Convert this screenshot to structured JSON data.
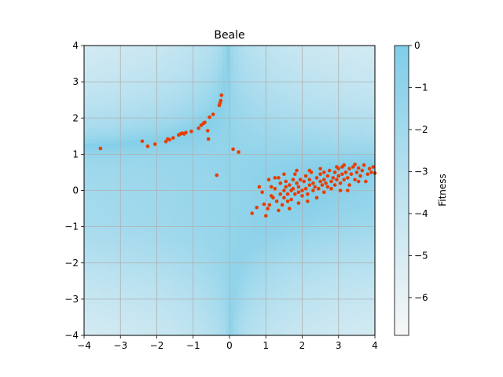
{
  "chart_data": {
    "type": "scatter",
    "title": "Beale",
    "xlabel": "",
    "ylabel": "",
    "xlim": [
      -4,
      4
    ],
    "ylim": [
      -4,
      4
    ],
    "x_ticks": [
      "−4",
      "−3",
      "−2",
      "−1",
      "0",
      "1",
      "2",
      "3",
      "4"
    ],
    "y_ticks": [
      "−4",
      "−3",
      "−2",
      "−1",
      "0",
      "1",
      "2",
      "3",
      "4"
    ],
    "grid": true,
    "background": "heatmap",
    "heatmap_function": "Beale",
    "point_color": "#e63e05",
    "colorbar": {
      "label": "Fitness",
      "ticks": [
        "0",
        "−1",
        "−2",
        "−3",
        "−4",
        "−5",
        "−6"
      ],
      "range": [
        -6.9,
        0
      ],
      "color_high": "#7fcde8",
      "color_low": "#f7f7f7"
    },
    "series": [
      {
        "points": [
          [
            -3.55,
            1.16
          ],
          [
            -2.4,
            1.36
          ],
          [
            -2.25,
            1.22
          ],
          [
            -2.05,
            1.28
          ],
          [
            -1.75,
            1.35
          ],
          [
            -1.7,
            1.42
          ],
          [
            -1.65,
            1.4
          ],
          [
            -1.55,
            1.45
          ],
          [
            -1.4,
            1.53
          ],
          [
            -1.35,
            1.56
          ],
          [
            -1.3,
            1.58
          ],
          [
            -1.25,
            1.56
          ],
          [
            -1.2,
            1.6
          ],
          [
            -1.05,
            1.63
          ],
          [
            -0.85,
            1.72
          ],
          [
            -0.78,
            1.8
          ],
          [
            -0.72,
            1.85
          ],
          [
            -0.68,
            1.88
          ],
          [
            -0.6,
            1.65
          ],
          [
            -0.55,
            2.02
          ],
          [
            -0.45,
            2.1
          ],
          [
            -0.28,
            2.35
          ],
          [
            -0.26,
            2.42
          ],
          [
            -0.24,
            2.48
          ],
          [
            -0.22,
            2.63
          ],
          [
            -0.58,
            1.42
          ],
          [
            0.1,
            1.14
          ],
          [
            0.25,
            1.06
          ],
          [
            -0.35,
            0.42
          ],
          [
            0.62,
            -0.63
          ],
          [
            0.75,
            -0.47
          ],
          [
            0.95,
            -0.38
          ],
          [
            1.0,
            -0.7
          ],
          [
            1.05,
            -0.5
          ],
          [
            1.08,
            0.3
          ],
          [
            1.1,
            -0.4
          ],
          [
            1.15,
            0.1
          ],
          [
            1.2,
            -0.2
          ],
          [
            1.25,
            0.05
          ],
          [
            0.82,
            0.1
          ],
          [
            0.9,
            -0.05
          ],
          [
            1.3,
            -0.3
          ],
          [
            1.35,
            0.35
          ],
          [
            1.4,
            -0.1
          ],
          [
            1.4,
            0.2
          ],
          [
            1.45,
            -0.4
          ],
          [
            1.5,
            0.0
          ],
          [
            1.5,
            -0.2
          ],
          [
            1.55,
            0.25
          ],
          [
            1.55,
            0.1
          ],
          [
            1.6,
            -0.1
          ],
          [
            1.6,
            -0.3
          ],
          [
            1.65,
            0.15
          ],
          [
            1.7,
            0.0
          ],
          [
            1.7,
            -0.25
          ],
          [
            1.75,
            0.3
          ],
          [
            1.75,
            0.05
          ],
          [
            1.8,
            -0.1
          ],
          [
            1.8,
            0.45
          ],
          [
            1.85,
            0.2
          ],
          [
            1.9,
            -0.05
          ],
          [
            1.9,
            0.1
          ],
          [
            1.95,
            0.3
          ],
          [
            2.0,
            0.0
          ],
          [
            2.0,
            -0.15
          ],
          [
            2.05,
            0.25
          ],
          [
            2.1,
            0.4
          ],
          [
            2.1,
            0.05
          ],
          [
            2.15,
            -0.1
          ],
          [
            2.2,
            0.15
          ],
          [
            2.2,
            0.3
          ],
          [
            2.25,
            0.5
          ],
          [
            2.3,
            0.0
          ],
          [
            2.3,
            0.2
          ],
          [
            2.35,
            0.1
          ],
          [
            2.4,
            0.35
          ],
          [
            2.45,
            0.05
          ],
          [
            2.5,
            0.25
          ],
          [
            2.5,
            0.45
          ],
          [
            2.55,
            0.15
          ],
          [
            2.6,
            0.3
          ],
          [
            2.6,
            0.5
          ],
          [
            2.65,
            0.2
          ],
          [
            2.7,
            0.1
          ],
          [
            2.7,
            0.4
          ],
          [
            2.75,
            0.55
          ],
          [
            2.8,
            0.25
          ],
          [
            2.8,
            0.05
          ],
          [
            2.85,
            0.35
          ],
          [
            2.9,
            0.5
          ],
          [
            2.9,
            0.15
          ],
          [
            2.95,
            0.3
          ],
          [
            3.0,
            0.6
          ],
          [
            3.0,
            0.4
          ],
          [
            3.05,
            0.2
          ],
          [
            3.1,
            0.45
          ],
          [
            3.1,
            0.65
          ],
          [
            3.15,
            0.3
          ],
          [
            3.2,
            0.5
          ],
          [
            3.25,
            0.35
          ],
          [
            3.3,
            0.6
          ],
          [
            3.3,
            0.15
          ],
          [
            3.35,
            0.45
          ],
          [
            3.4,
            0.65
          ],
          [
            3.45,
            0.3
          ],
          [
            3.5,
            0.5
          ],
          [
            3.55,
            0.62
          ],
          [
            3.6,
            0.4
          ],
          [
            3.65,
            0.55
          ],
          [
            3.7,
            0.7
          ],
          [
            3.75,
            0.25
          ],
          [
            3.8,
            0.45
          ],
          [
            3.85,
            0.6
          ],
          [
            3.9,
            0.5
          ],
          [
            3.95,
            0.65
          ],
          [
            4.0,
            0.48
          ],
          [
            3.05,
            0.0
          ],
          [
            3.25,
            0.0
          ],
          [
            3.55,
            0.25
          ],
          [
            1.65,
            -0.5
          ],
          [
            1.35,
            -0.55
          ],
          [
            1.9,
            -0.35
          ],
          [
            2.15,
            -0.3
          ],
          [
            2.4,
            -0.2
          ],
          [
            2.6,
            -0.05
          ],
          [
            1.15,
            -0.15
          ],
          [
            1.25,
            0.35
          ],
          [
            1.5,
            0.45
          ],
          [
            1.85,
            0.55
          ],
          [
            2.2,
            0.55
          ],
          [
            2.5,
            0.6
          ],
          [
            2.95,
            0.65
          ],
          [
            3.15,
            0.7
          ],
          [
            3.45,
            0.72
          ]
        ]
      }
    ]
  }
}
